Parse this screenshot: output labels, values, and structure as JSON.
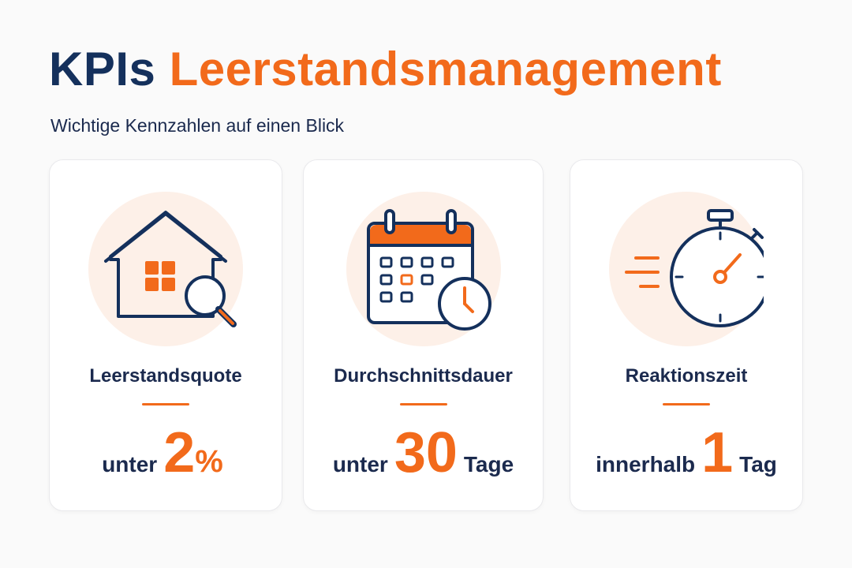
{
  "header": {
    "title_part1": "KPIs",
    "title_part2": "Leerstandsmanagement",
    "subtitle": "Wichtige Kennzahlen auf einen Blick"
  },
  "colors": {
    "navy": "#14305c",
    "orange": "#f26a1b",
    "circle_bg": "#fdf0e8"
  },
  "cards": [
    {
      "icon": "house-magnifier-icon",
      "label": "Leerstandsquote",
      "prefix": "unter",
      "number": "2",
      "unit": "%",
      "suffix": ""
    },
    {
      "icon": "calendar-clock-icon",
      "label": "Durchschnittsdauer",
      "prefix": "unter",
      "number": "30",
      "unit": "",
      "suffix": "Tage"
    },
    {
      "icon": "stopwatch-icon",
      "label": "Reaktionszeit",
      "prefix": "innerhalb",
      "number": "1",
      "unit": "",
      "suffix": "Tag"
    }
  ]
}
